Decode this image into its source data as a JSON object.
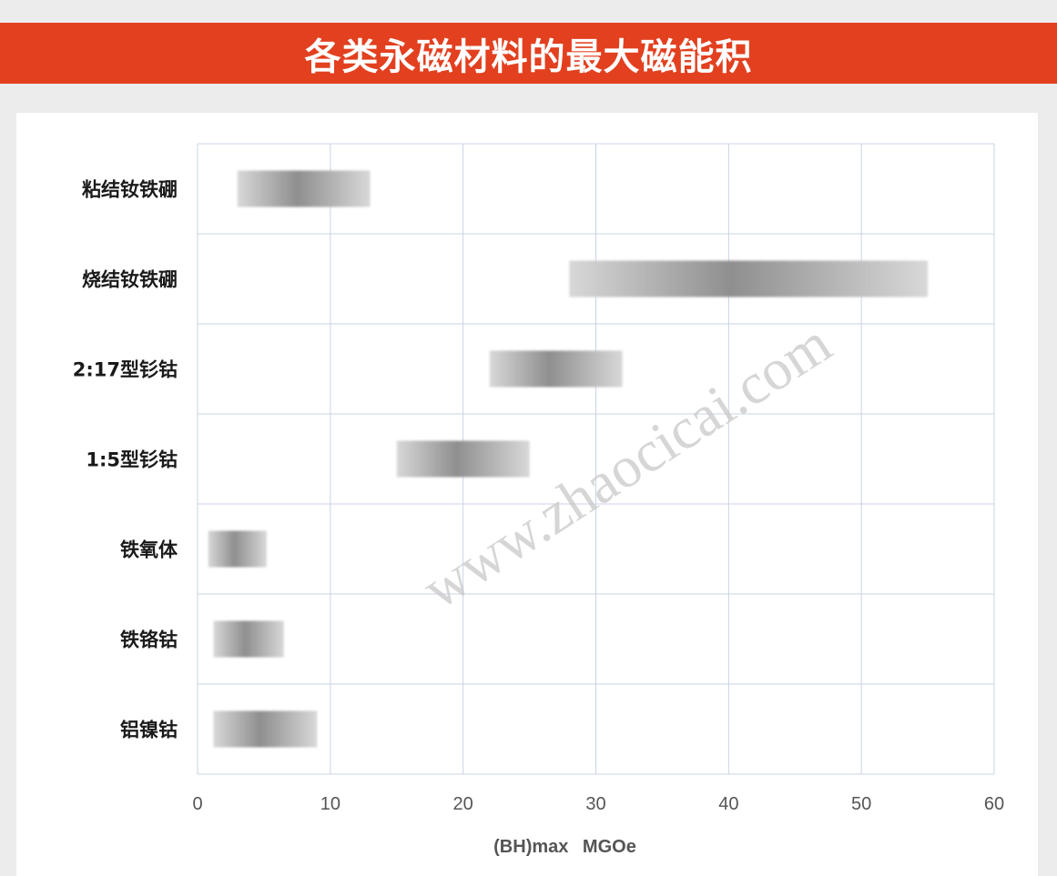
{
  "colors": {
    "banner": "#e2401f",
    "background": "#ececec",
    "grid": "#c9d3e6",
    "bar_dark": "#8c8c8c",
    "bar_light": "#d6d6d6",
    "watermark": "#c8c8c8"
  },
  "watermark": "www.zhaocicai.com",
  "chart_data": {
    "type": "bar",
    "orientation": "horizontal",
    "title": "各类永磁材料的最大磁能积",
    "xlabel": "(BH)max  MGOe",
    "xlim": [
      0,
      60
    ],
    "xticks": [
      0,
      10,
      20,
      30,
      40,
      50,
      60
    ],
    "grid": true,
    "categories": [
      "粘结钕铁硼",
      "烧结钕铁硼",
      "2:17型钐钴",
      "1:5型钐钴",
      "铁氧体",
      "铁铬钴",
      "铝镍钴"
    ],
    "ranges": [
      [
        3,
        13
      ],
      [
        28,
        55
      ],
      [
        22,
        32
      ],
      [
        15,
        25
      ],
      [
        0.8,
        5.2
      ],
      [
        1.2,
        6.5
      ],
      [
        1.2,
        9
      ]
    ]
  }
}
